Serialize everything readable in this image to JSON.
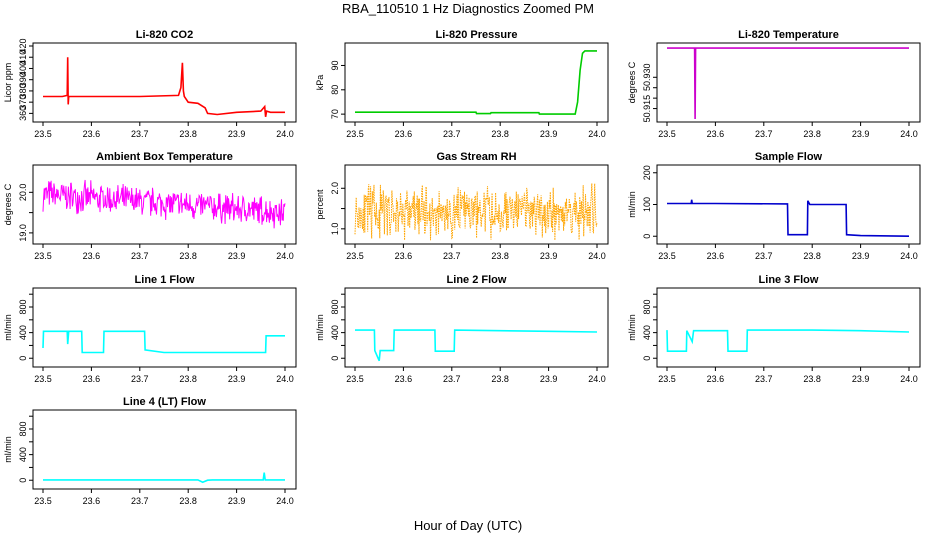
{
  "page": {
    "title": "RBA_110510  1 Hz Diagnostics Zoomed PM",
    "xlabel": "Hour of Day (UTC)"
  },
  "chart_data": [
    {
      "type": "line",
      "title": "Li-820 CO2",
      "ylabel": "Licor ppm",
      "color": "#ff0000",
      "xlim": [
        23.5,
        24.0
      ],
      "xticks": [
        23.5,
        23.6,
        23.7,
        23.8,
        23.9,
        24.0
      ],
      "ylim": [
        355,
        420
      ],
      "yticks": [
        360,
        370,
        380,
        390,
        400,
        410,
        420
      ],
      "series": [
        {
          "x": [
            23.5,
            23.54,
            23.55,
            23.551,
            23.552,
            23.553,
            23.56,
            23.6,
            23.7,
            23.78,
            23.785,
            23.788,
            23.79,
            23.792,
            23.8,
            23.82,
            23.835,
            23.84,
            23.86,
            23.9,
            23.95,
            23.958,
            23.96,
            23.962,
            23.97,
            24.0
          ],
          "y": [
            375,
            375,
            376,
            410,
            368,
            375,
            375,
            375,
            375,
            376,
            383,
            405,
            380,
            375,
            370,
            369,
            365,
            360,
            359,
            361,
            362,
            366,
            357,
            362,
            361,
            361
          ]
        }
      ]
    },
    {
      "type": "line",
      "title": "Li-820 Pressure",
      "ylabel": "kPa",
      "color": "#00cc00",
      "xlim": [
        23.5,
        24.0
      ],
      "xticks": [
        23.5,
        23.6,
        23.7,
        23.8,
        23.9,
        24.0
      ],
      "ylim": [
        68,
        98
      ],
      "yticks": [
        70,
        80,
        90
      ],
      "series": [
        {
          "x": [
            23.5,
            23.75,
            23.751,
            23.78,
            23.781,
            23.88,
            23.881,
            23.955,
            23.96,
            23.965,
            23.97,
            23.975,
            24.0
          ],
          "y": [
            70.8,
            70.8,
            70.2,
            70.2,
            70.6,
            70.6,
            70.0,
            70.0,
            75,
            88,
            95,
            96,
            96
          ]
        }
      ]
    },
    {
      "type": "line",
      "title": "Li-820 Temperature",
      "ylabel": "degrees C",
      "color": "#cc00cc",
      "xlim": [
        23.5,
        24.0
      ],
      "xticks": [
        23.5,
        23.6,
        23.7,
        23.8,
        23.9,
        24.0
      ],
      "ylim": [
        50.91,
        50.945
      ],
      "yticks": [
        50.915,
        50.92,
        50.925,
        50.93
      ],
      "ytick_labels": [
        "50.915",
        "",
        "",
        "50.930"
      ],
      "series": [
        {
          "x": [
            23.5,
            23.557,
            23.558,
            23.559,
            24.0
          ],
          "y": [
            50.944,
            50.944,
            50.91,
            50.944,
            50.944
          ]
        }
      ]
    },
    {
      "type": "line",
      "title": "Ambient Box Temperature",
      "ylabel": "degrees C",
      "color": "#ff00ff",
      "xlim": [
        23.5,
        24.0
      ],
      "xticks": [
        23.5,
        23.6,
        23.7,
        23.8,
        23.9,
        24.0
      ],
      "ylim": [
        18.8,
        20.6
      ],
      "yticks": [
        19.0,
        19.5,
        20.0
      ],
      "ytick_labels": [
        "19.0",
        "",
        "20.0"
      ],
      "noise": {
        "base": 19.7,
        "amp": 0.45,
        "seed": 7,
        "dense": true
      }
    },
    {
      "type": "line",
      "title": "Gas Stream RH",
      "ylabel": "percent",
      "color": "#ffa500",
      "xlim": [
        23.5,
        24.0
      ],
      "xticks": [
        23.5,
        23.6,
        23.7,
        23.8,
        23.9,
        24.0
      ],
      "ylim": [
        0.7,
        2.5
      ],
      "yticks": [
        1.0,
        1.5,
        2.0
      ],
      "ytick_labels": [
        "1.0",
        "",
        "2.0"
      ],
      "noise": {
        "base": 1.4,
        "amp": 0.8,
        "seed": 11,
        "dense": true,
        "dotted": true
      }
    },
    {
      "type": "line",
      "title": "Sample Flow",
      "ylabel": "ml/min",
      "color": "#0000cc",
      "xlim": [
        23.5,
        24.0
      ],
      "xticks": [
        23.5,
        23.6,
        23.7,
        23.8,
        23.9,
        24.0
      ],
      "ylim": [
        -15,
        215
      ],
      "yticks": [
        0,
        100,
        200
      ],
      "series": [
        {
          "x": [
            23.5,
            23.55,
            23.551,
            23.552,
            23.6,
            23.749,
            23.75,
            23.79,
            23.791,
            23.795,
            23.87,
            23.871,
            23.9,
            24.0
          ],
          "y": [
            103,
            103,
            115,
            103,
            103,
            102,
            5,
            5,
            112,
            100,
            100,
            5,
            2,
            0
          ]
        }
      ]
    },
    {
      "type": "line",
      "title": "Line 1 Flow",
      "ylabel": "ml/min",
      "color": "#00ffff",
      "xlim": [
        23.5,
        24.0
      ],
      "xticks": [
        23.5,
        23.6,
        23.7,
        23.8,
        23.9,
        24.0
      ],
      "ylim": [
        -90,
        1050
      ],
      "yticks": [
        0,
        200,
        400,
        600,
        800,
        1000
      ],
      "ytick_labels": [
        "0",
        "",
        "400",
        "",
        "800",
        ""
      ],
      "series": [
        {
          "x": [
            23.5,
            23.501,
            23.55,
            23.551,
            23.553,
            23.58,
            23.581,
            23.625,
            23.626,
            23.71,
            23.711,
            23.75,
            23.96,
            23.961,
            24.0
          ],
          "y": [
            160,
            420,
            420,
            220,
            420,
            420,
            90,
            90,
            420,
            420,
            130,
            90,
            90,
            350,
            350
          ]
        }
      ]
    },
    {
      "type": "line",
      "title": "Line 2 Flow",
      "ylabel": "ml/min",
      "color": "#00ffff",
      "xlim": [
        23.5,
        24.0
      ],
      "xticks": [
        23.5,
        23.6,
        23.7,
        23.8,
        23.9,
        24.0
      ],
      "ylim": [
        -90,
        1050
      ],
      "yticks": [
        0,
        200,
        400,
        600,
        800,
        1000
      ],
      "ytick_labels": [
        "0",
        "",
        "400",
        "",
        "800",
        ""
      ],
      "series": [
        {
          "x": [
            23.5,
            23.54,
            23.541,
            23.55,
            23.552,
            23.58,
            23.581,
            23.665,
            23.666,
            23.705,
            23.706,
            23.8,
            23.9,
            24.0
          ],
          "y": [
            440,
            440,
            120,
            -40,
            120,
            120,
            440,
            440,
            110,
            110,
            440,
            430,
            420,
            410
          ]
        }
      ]
    },
    {
      "type": "line",
      "title": "Line 3 Flow",
      "ylabel": "ml/min",
      "color": "#00ffff",
      "xlim": [
        23.5,
        24.0
      ],
      "xticks": [
        23.5,
        23.6,
        23.7,
        23.8,
        23.9,
        24.0
      ],
      "ylim": [
        -90,
        1050
      ],
      "yticks": [
        0,
        200,
        400,
        600,
        800,
        1000
      ],
      "ytick_labels": [
        "0",
        "",
        "400",
        "",
        "800",
        ""
      ],
      "series": [
        {
          "x": [
            23.5,
            23.501,
            23.54,
            23.541,
            23.552,
            23.555,
            23.625,
            23.626,
            23.665,
            23.666,
            23.8,
            23.9,
            24.0
          ],
          "y": [
            440,
            110,
            110,
            430,
            260,
            430,
            430,
            110,
            110,
            440,
            440,
            430,
            410
          ]
        }
      ]
    },
    {
      "type": "line",
      "title": "Line 4 (LT) Flow",
      "ylabel": "ml/min",
      "color": "#00ffff",
      "xlim": [
        23.5,
        24.0
      ],
      "xticks": [
        23.5,
        23.6,
        23.7,
        23.8,
        23.9,
        24.0
      ],
      "ylim": [
        -90,
        1050
      ],
      "yticks": [
        0,
        200,
        400,
        600,
        800,
        1000
      ],
      "ytick_labels": [
        "0",
        "",
        "400",
        "",
        "800",
        ""
      ],
      "series": [
        {
          "x": [
            23.5,
            23.82,
            23.83,
            23.84,
            23.85,
            23.955,
            23.957,
            23.959,
            24.0
          ],
          "y": [
            5,
            5,
            -30,
            0,
            5,
            5,
            120,
            5,
            5
          ]
        }
      ]
    }
  ]
}
